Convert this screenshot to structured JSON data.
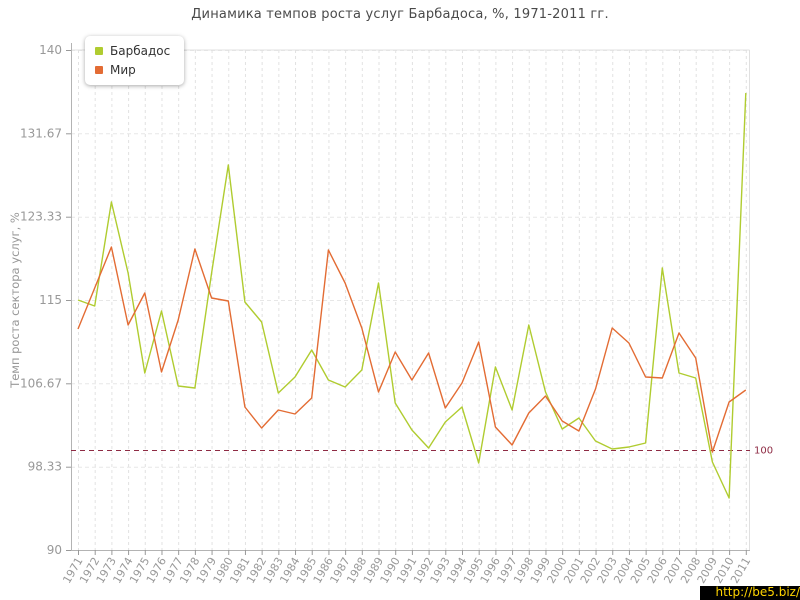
{
  "title": "Динамика темпов роста услуг Барбадоса, %, 1971-2011 гг.",
  "watermark": {
    "text": "http://be5.biz/",
    "bg": "#000000",
    "fg": "#ffd400"
  },
  "guide_label": "100",
  "chart_data": {
    "type": "line",
    "title": "Динамика темпов роста услуг Барбадоса, %, 1971-2011 гг.",
    "xlabel": "",
    "ylabel": "Темп роста сектора услуг, %",
    "ylim": [
      90,
      140
    ],
    "yticks": [
      90,
      98.33,
      106.67,
      115,
      123.33,
      131.67,
      140
    ],
    "ytick_labels": [
      "90",
      "98.33",
      "106.67",
      "115",
      "123.33",
      "131.67",
      "140"
    ],
    "grid": true,
    "legend_position": "top-left",
    "guide": {
      "value": 100,
      "label": "100",
      "color": "#8e2b44"
    },
    "x": [
      1971,
      1972,
      1973,
      1974,
      1975,
      1976,
      1977,
      1978,
      1979,
      1980,
      1981,
      1982,
      1983,
      1984,
      1985,
      1986,
      1987,
      1988,
      1989,
      1990,
      1991,
      1992,
      1993,
      1994,
      1995,
      1996,
      1997,
      1998,
      1999,
      2000,
      2001,
      2002,
      2003,
      2004,
      2005,
      2006,
      2007,
      2008,
      2009,
      2010,
      2011
    ],
    "series": [
      {
        "name": "Барбадос",
        "color": "#b0cc30",
        "values": [
          115.0,
          114.4,
          124.8,
          117.7,
          107.7,
          113.9,
          106.4,
          106.2,
          117.7,
          128.5,
          114.8,
          112.8,
          105.7,
          107.3,
          110.0,
          107.0,
          106.3,
          108.0,
          116.7,
          104.7,
          102.0,
          100.2,
          102.8,
          104.3,
          98.7,
          108.3,
          104.0,
          112.5,
          105.8,
          102.1,
          103.2,
          100.9,
          100.1,
          100.3,
          100.7,
          118.2,
          107.7,
          107.2,
          98.8,
          95.2,
          135.7
        ]
      },
      {
        "name": "Мир",
        "color": "#e36c34",
        "values": [
          112.1,
          116.2,
          120.3,
          112.5,
          115.7,
          107.8,
          113.0,
          120.1,
          115.2,
          114.9,
          104.3,
          102.2,
          104.0,
          103.6,
          105.2,
          120.0,
          116.7,
          112.2,
          105.8,
          109.8,
          107.0,
          109.7,
          104.2,
          106.7,
          110.8,
          102.3,
          100.5,
          103.7,
          105.4,
          102.9,
          101.9,
          106.1,
          112.2,
          110.7,
          107.3,
          107.2,
          111.7,
          109.2,
          99.8,
          104.8,
          106.0
        ]
      }
    ]
  }
}
